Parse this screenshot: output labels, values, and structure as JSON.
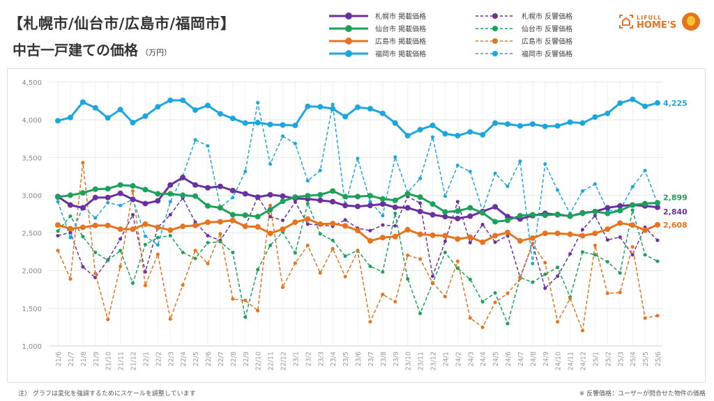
{
  "header": {
    "title_line1": "【札幌市/仙台市/広島市/福岡市】",
    "title_line2": "中古一戸建ての価格",
    "unit": "（万円）",
    "logo_text_top": "LIFULL",
    "logo_text_bottom": "HOME'S"
  },
  "footer": {
    "note": "注） グラフは変化を強調するためにスケールを調整しています",
    "definition": "※ 反響価格：ユーザーが問合せた物件の価格"
  },
  "chart_data": {
    "type": "line",
    "title": "中古一戸建ての価格",
    "ylabel": "万円",
    "ylim": [
      1000,
      4500
    ],
    "yticks": [
      "1,000",
      "1,500",
      "2,000",
      "2,500",
      "3,000",
      "3,500",
      "4,000",
      "4,500"
    ],
    "ytick_values": [
      1000,
      1500,
      2000,
      2500,
      3000,
      3500,
      4000,
      4500
    ],
    "grid": true,
    "legend_position": "top",
    "categories": [
      "21/6",
      "21/7",
      "21/8",
      "21/9",
      "21/10",
      "21/11",
      "21/12",
      "22/1",
      "22/2",
      "22/3",
      "22/4",
      "22/5",
      "22/6",
      "22/7",
      "22/8",
      "22/9",
      "22/10",
      "22/11",
      "22/12",
      "23/1",
      "23/2",
      "23/3",
      "23/4",
      "23/5",
      "23/6",
      "23/7",
      "23/8",
      "23/9",
      "23/10",
      "23/11",
      "23/12",
      "24/1",
      "24/2",
      "24/3",
      "24/4",
      "24/5",
      "24/6",
      "24/7",
      "24/8",
      "24/9",
      "24/10",
      "24/11",
      "24/12",
      "25/1",
      "25/2",
      "25/3",
      "25/4",
      "25/5",
      "25/6"
    ],
    "series": [
      {
        "name": "札幌市 反響価格",
        "color": "#6a2fa0",
        "dashed": true,
        "values": [
          2463,
          2506,
          2050,
          1908,
          2142,
          2420,
          2741,
          1982,
          2574,
          2741,
          2963,
          2642,
          2463,
          2401,
          2654,
          2580,
          2982,
          2716,
          2667,
          2908,
          2617,
          2605,
          2587,
          2673,
          2562,
          2531,
          2605,
          2593,
          2982,
          2895,
          1926,
          2389,
          2914,
          2371,
          2611,
          2377,
          2463,
          1908,
          2358,
          1766,
          1926,
          2222,
          2543,
          2729,
          2407,
          2444,
          2210,
          2574,
          2401
        ]
      },
      {
        "name": "仙台市 反響価格",
        "color": "#1aa15a",
        "dashed": true,
        "values": [
          2525,
          2722,
          2451,
          2241,
          2136,
          2266,
          1834,
          2346,
          2438,
          2463,
          2241,
          2161,
          2370,
          2383,
          2241,
          1383,
          2013,
          2334,
          2512,
          2235,
          2889,
          2488,
          2401,
          2192,
          2266,
          2056,
          1982,
          2759,
          1889,
          1432,
          1834,
          2241,
          2031,
          1883,
          1587,
          1704,
          1297,
          1908,
          1846,
          1951,
          2043,
          1648,
          2247,
          2210,
          2117,
          1969,
          2802,
          2210,
          2124
        ]
      },
      {
        "name": "広島市 反響価格",
        "color": "#e8731c",
        "dashed": true,
        "values": [
          2266,
          1889,
          3432,
          1963,
          1352,
          2056,
          3056,
          1803,
          2216,
          1358,
          1809,
          2266,
          2093,
          2488,
          1624,
          1605,
          1469,
          2864,
          1778,
          2099,
          2334,
          1969,
          2290,
          1920,
          2259,
          1321,
          1685,
          1587,
          2204,
          2154,
          1840,
          1655,
          2124,
          1371,
          1247,
          1580,
          1698,
          1895,
          2358,
          2105,
          1321,
          1630,
          1204,
          2334,
          1698,
          1710,
          2315,
          1371,
          1402
        ]
      },
      {
        "name": "福岡市 反響価格",
        "color": "#1aa7e0",
        "dashed": true,
        "values": [
          2914,
          2438,
          2846,
          2698,
          2901,
          2864,
          2945,
          2457,
          2340,
          2914,
          3253,
          3735,
          3654,
          2840,
          2969,
          3315,
          4228,
          3414,
          3784,
          3685,
          3191,
          3327,
          4204,
          2864,
          3488,
          2914,
          2729,
          3506,
          3037,
          3222,
          3772,
          2988,
          3395,
          3315,
          2790,
          3290,
          3117,
          3451,
          2093,
          3414,
          3068,
          2759,
          3056,
          3148,
          2796,
          2802,
          3111,
          3327,
          2889
        ]
      },
      {
        "name": "札幌市 掲載価格",
        "color": "#6a2fa0",
        "dashed": false,
        "end_label": "2,840",
        "values": [
          2982,
          2870,
          2833,
          2969,
          2969,
          3025,
          2945,
          2889,
          2926,
          3136,
          3235,
          3136,
          3099,
          3117,
          3062,
          3019,
          2975,
          3006,
          2988,
          2957,
          2951,
          2932,
          2914,
          2864,
          2852,
          2864,
          2883,
          2840,
          2833,
          2784,
          2741,
          2716,
          2691,
          2722,
          2784,
          2846,
          2716,
          2685,
          2729,
          2759,
          2741,
          2722,
          2766,
          2784,
          2833,
          2858,
          2870,
          2858,
          2840
        ]
      },
      {
        "name": "仙台市 掲載価格",
        "color": "#1aa15a",
        "dashed": false,
        "end_label": "2,899",
        "values": [
          2975,
          3000,
          3031,
          3080,
          3086,
          3136,
          3124,
          3074,
          3019,
          3019,
          3000,
          2988,
          2858,
          2833,
          2741,
          2735,
          2716,
          2809,
          2920,
          2975,
          2994,
          3006,
          3056,
          2982,
          2982,
          2994,
          2951,
          2932,
          3019,
          2975,
          2883,
          2778,
          2790,
          2833,
          2766,
          2648,
          2667,
          2729,
          2741,
          2735,
          2747,
          2722,
          2759,
          2784,
          2759,
          2796,
          2870,
          2889,
          2899
        ]
      },
      {
        "name": "広島市 掲載価格",
        "color": "#e8731c",
        "dashed": false,
        "end_label": "2,608",
        "values": [
          2605,
          2556,
          2574,
          2599,
          2599,
          2550,
          2550,
          2617,
          2574,
          2537,
          2587,
          2599,
          2642,
          2648,
          2667,
          2587,
          2580,
          2494,
          2550,
          2642,
          2685,
          2617,
          2624,
          2593,
          2531,
          2395,
          2438,
          2451,
          2543,
          2482,
          2469,
          2463,
          2420,
          2444,
          2377,
          2463,
          2506,
          2395,
          2432,
          2494,
          2494,
          2482,
          2463,
          2494,
          2550,
          2630,
          2605,
          2537,
          2608
        ]
      },
      {
        "name": "福岡市 掲載価格",
        "color": "#1aa7e0",
        "dashed": false,
        "end_label": "4,225",
        "values": [
          3988,
          4031,
          4235,
          4160,
          4025,
          4136,
          3963,
          4049,
          4173,
          4259,
          4259,
          4130,
          4191,
          4080,
          4019,
          3957,
          3963,
          3938,
          3932,
          3926,
          4179,
          4173,
          4148,
          4043,
          4167,
          4148,
          4086,
          3957,
          3790,
          3870,
          3926,
          3815,
          3790,
          3840,
          3802,
          3957,
          3944,
          3920,
          3944,
          3913,
          3920,
          3969,
          3957,
          4037,
          4086,
          4222,
          4272,
          4179,
          4225
        ]
      }
    ],
    "legend": [
      {
        "name": "札幌市 掲載価格",
        "color": "#6a2fa0",
        "dashed": false
      },
      {
        "name": "札幌市 反響価格",
        "color": "#6a2fa0",
        "dashed": true
      },
      {
        "name": "仙台市 掲載価格",
        "color": "#1aa15a",
        "dashed": false
      },
      {
        "name": "仙台市 反響価格",
        "color": "#1aa15a",
        "dashed": true
      },
      {
        "name": "広島市 掲載価格",
        "color": "#e8731c",
        "dashed": false
      },
      {
        "name": "広島市 反響価格",
        "color": "#e8731c",
        "dashed": true
      },
      {
        "name": "福岡市 掲載価格",
        "color": "#1aa7e0",
        "dashed": false
      },
      {
        "name": "福岡市 反響価格",
        "color": "#1aa7e0",
        "dashed": true
      }
    ]
  }
}
